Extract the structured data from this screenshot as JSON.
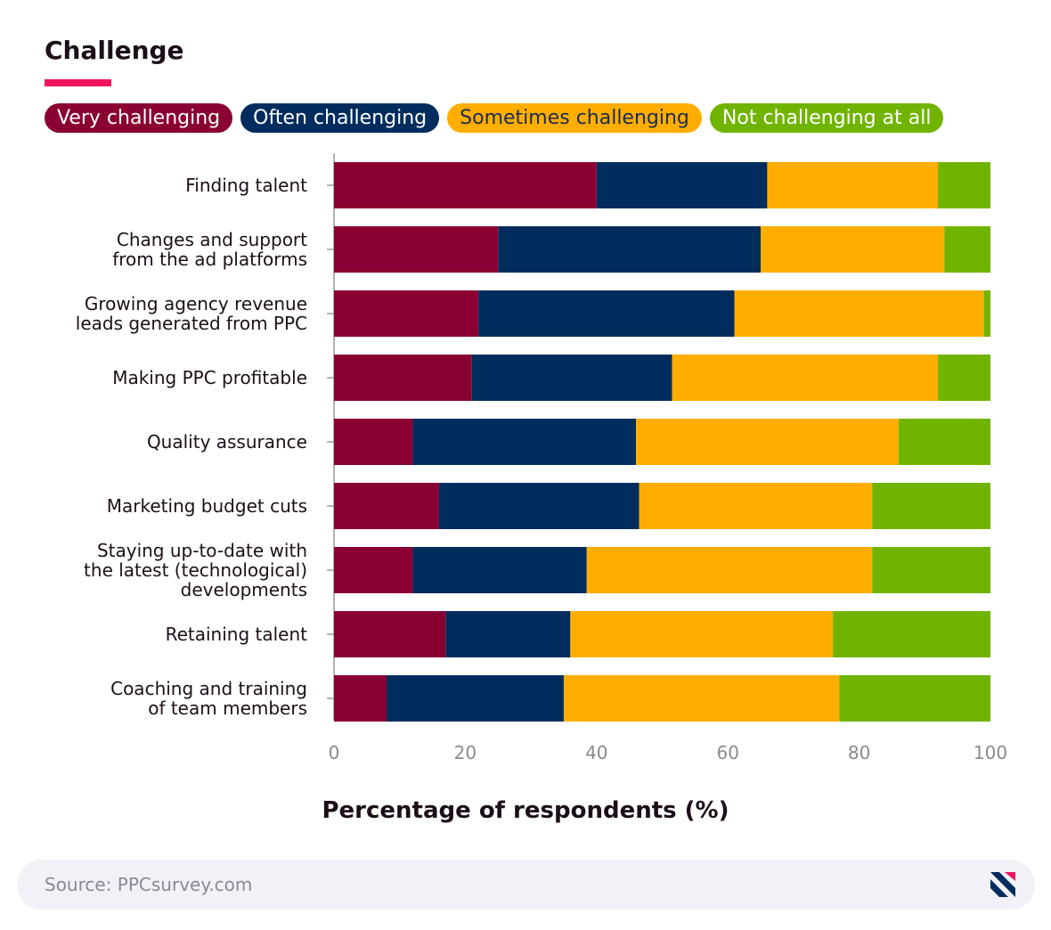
{
  "chart_data": {
    "type": "bar",
    "orientation": "horizontal",
    "stacked": true,
    "title": "Challenge",
    "xlabel": "Percentage of respondents (%)",
    "ylabel": "",
    "xlim": [
      0,
      100
    ],
    "xticks": [
      0,
      20,
      40,
      60,
      80,
      100
    ],
    "grid": false,
    "legend_position": "top",
    "categories": [
      "Finding talent",
      "Changes and support from the ad platforms",
      "Growing agency revenue leads generated from PPC",
      "Making PPC profitable",
      "Quality assurance",
      "Marketing budget cuts",
      "Staying up-to-date with the latest (technological) developments",
      "Retaining talent",
      "Coaching and training of team members"
    ],
    "category_lines": [
      [
        "Finding talent"
      ],
      [
        "Changes and support",
        "from the ad platforms"
      ],
      [
        "Growing agency revenue",
        "leads generated from PPC"
      ],
      [
        "Making PPC profitable"
      ],
      [
        "Quality assurance"
      ],
      [
        "Marketing budget cuts"
      ],
      [
        "Staying up-to-date with",
        "the latest (technological)",
        "developments"
      ],
      [
        "Retaining talent"
      ],
      [
        "Coaching and training",
        "of team members"
      ]
    ],
    "series": [
      {
        "name": "Very challenging",
        "color": "#8b0033",
        "values": [
          40,
          25,
          22,
          21,
          12,
          16,
          12,
          17,
          8
        ]
      },
      {
        "name": "Often challenging",
        "color": "#002d5e",
        "values": [
          26,
          40,
          39,
          30.5,
          34,
          30.5,
          26.5,
          19,
          27
        ]
      },
      {
        "name": "Sometimes challenging",
        "color": "#ffae00",
        "values": [
          26,
          28,
          38,
          40.5,
          40,
          35.5,
          43.5,
          40,
          42
        ]
      },
      {
        "name": "Not challenging at all",
        "color": "#70b400",
        "values": [
          8,
          7,
          1,
          8,
          14,
          18,
          18,
          24,
          23
        ]
      }
    ]
  },
  "legend_text_colors": [
    "#ffffff",
    "#ffffff",
    "#1c2a55",
    "#ffffff"
  ],
  "source": "Source: PPCsurvey.com",
  "logo_icon": "brand-logo-icon"
}
